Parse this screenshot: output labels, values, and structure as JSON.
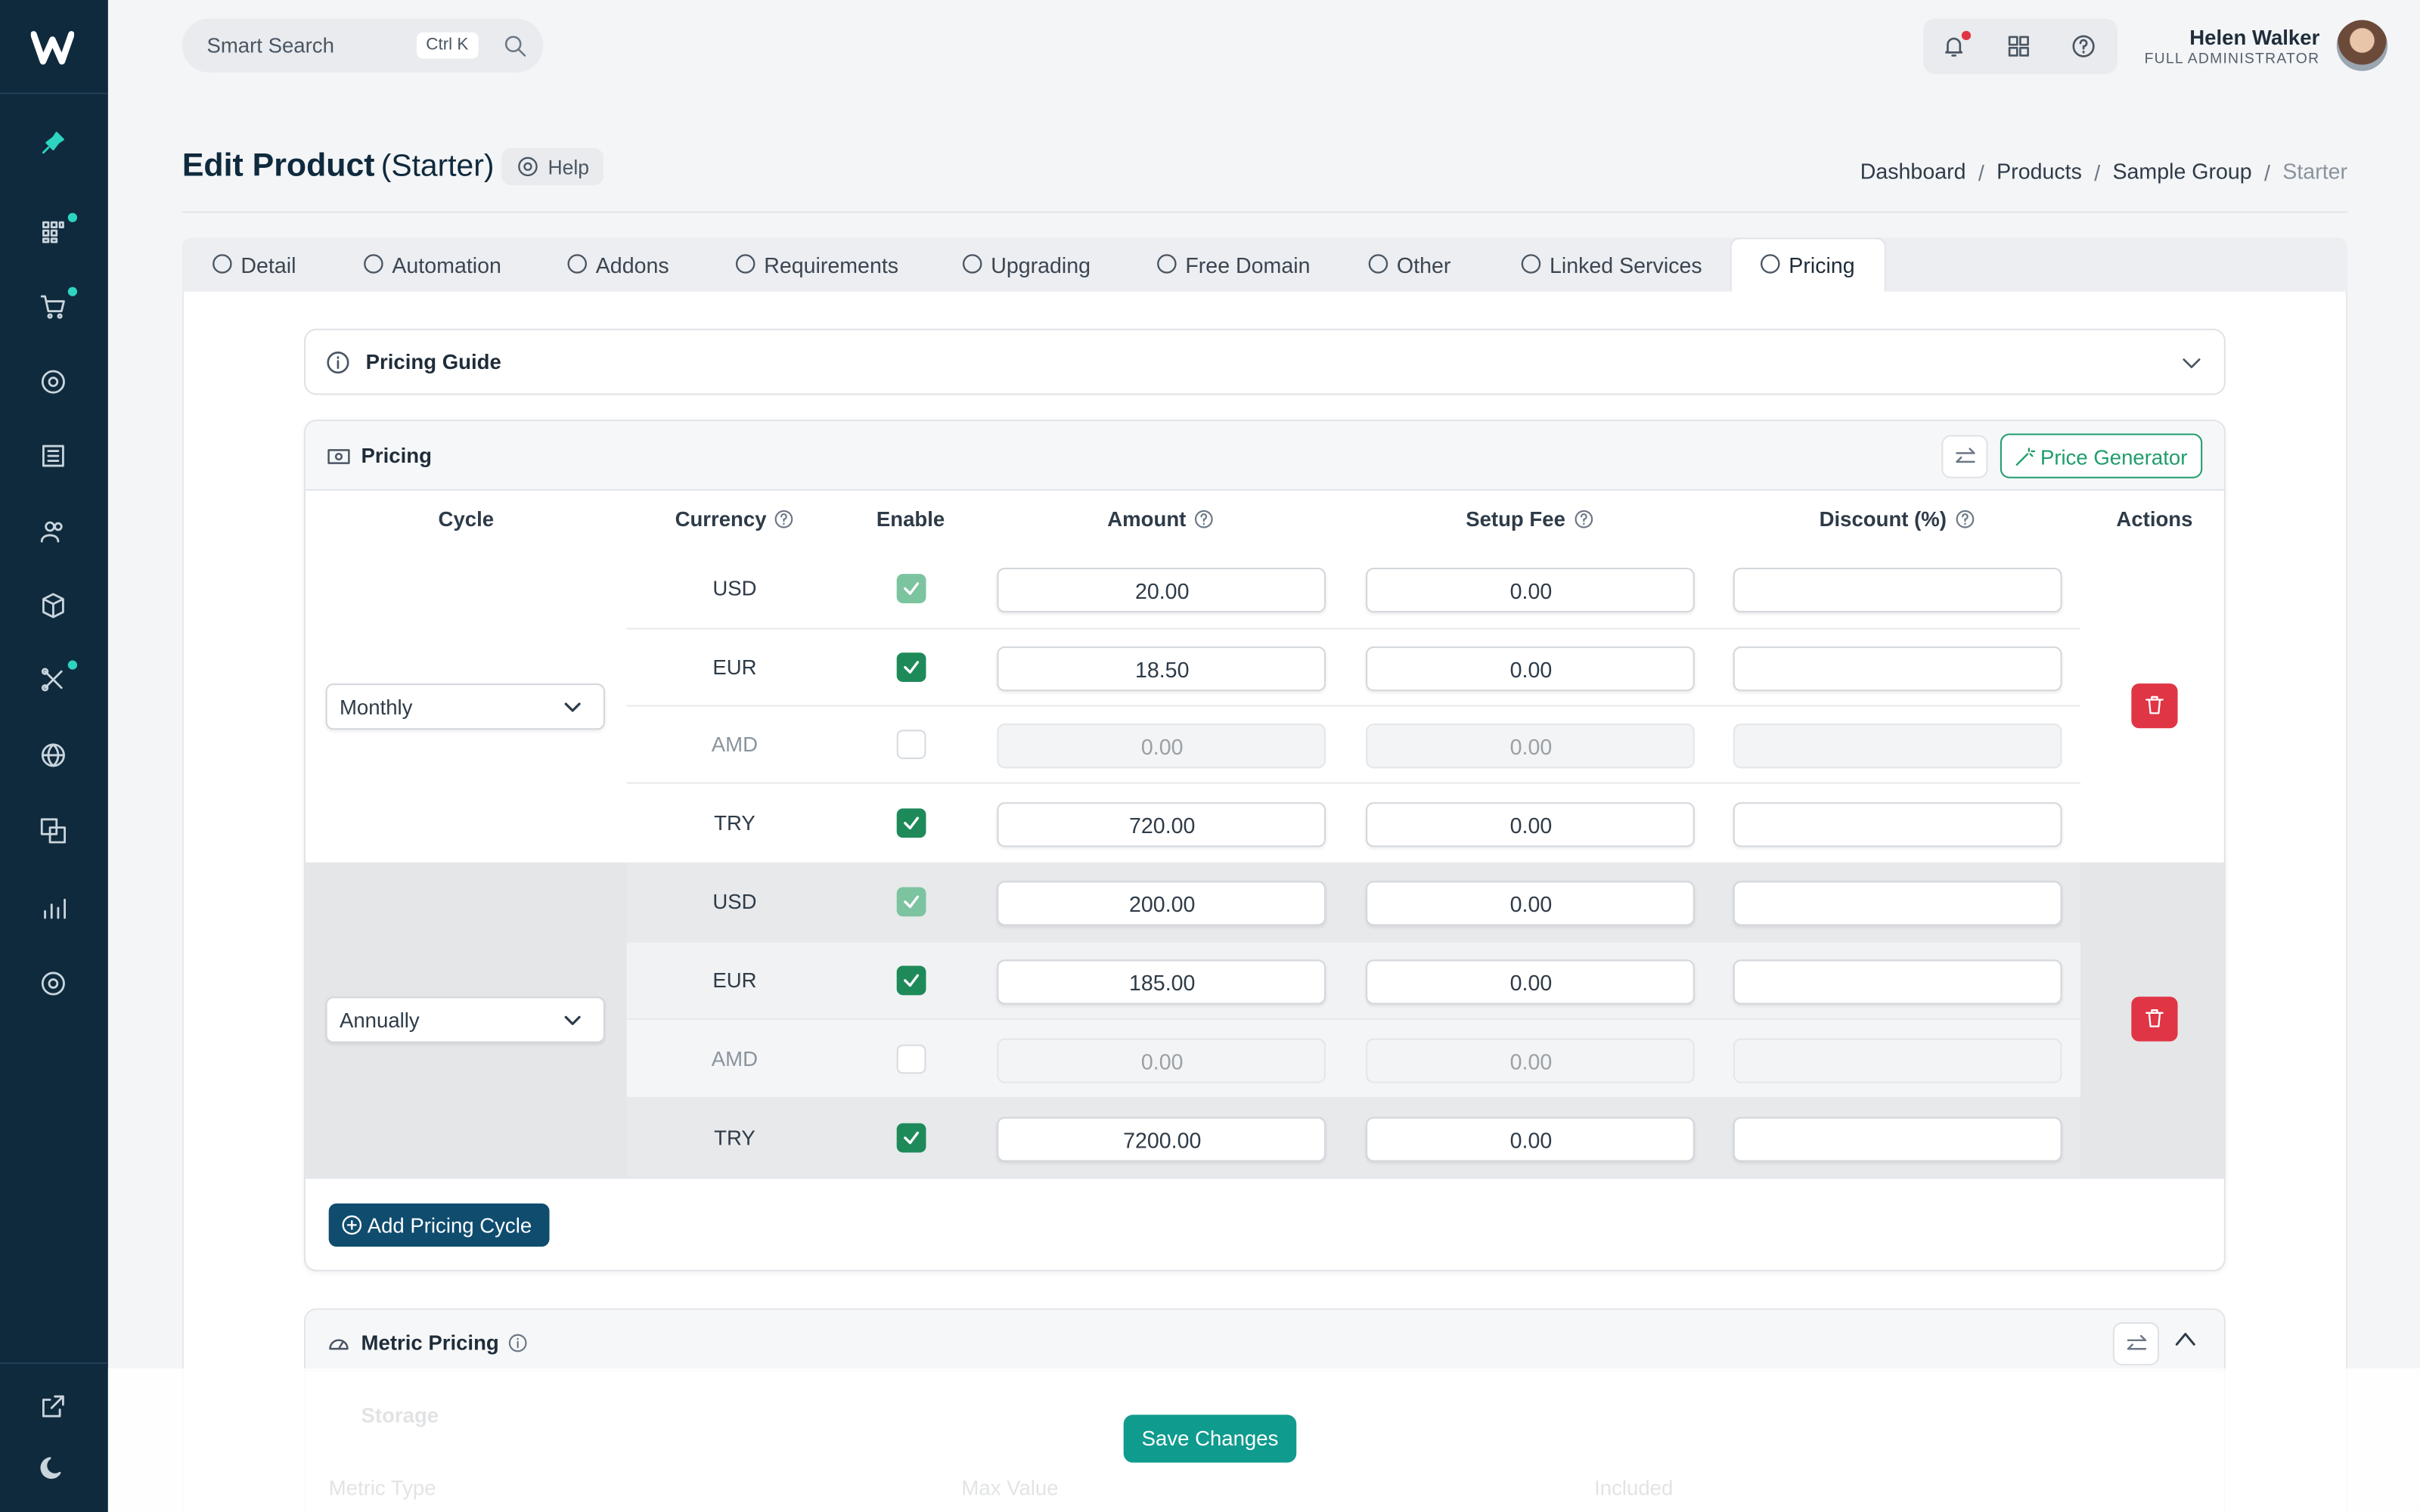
{
  "header": {
    "search_placeholder": "Smart Search",
    "search_shortcut": "Ctrl K",
    "user_name": "Helen Walker",
    "user_role": "FULL ADMINISTRATOR"
  },
  "page": {
    "title": "Edit Product",
    "subtitle": "(Starter)",
    "help": "Help",
    "breadcrumbs": [
      "Dashboard",
      "Products",
      "Sample Group",
      "Starter"
    ]
  },
  "tabs": [
    "Detail",
    "Automation",
    "Addons",
    "Requirements",
    "Upgrading",
    "Free Domain",
    "Other",
    "Linked Services",
    "Pricing"
  ],
  "active_tab": 8,
  "pricing_guide": {
    "title": "Pricing Guide"
  },
  "pricing": {
    "title": "Pricing",
    "generator": "Price Generator",
    "columns": [
      "Cycle",
      "Currency",
      "Enable",
      "Amount",
      "Setup Fee",
      "Discount (%)",
      "Actions"
    ],
    "cycles": [
      {
        "cycle": "Monthly",
        "rows": [
          {
            "currency": "USD",
            "enabled": true,
            "locked": true,
            "amount": "20.00",
            "setup_fee": "0.00"
          },
          {
            "currency": "EUR",
            "enabled": true,
            "amount": "18.50",
            "setup_fee": "0.00"
          },
          {
            "currency": "AMD",
            "enabled": false,
            "amount": "0.00",
            "setup_fee": "0.00"
          },
          {
            "currency": "TRY",
            "enabled": true,
            "amount": "720.00",
            "setup_fee": "0.00"
          }
        ]
      },
      {
        "cycle": "Annually",
        "rows": [
          {
            "currency": "USD",
            "enabled": true,
            "locked": true,
            "amount": "200.00",
            "setup_fee": "0.00"
          },
          {
            "currency": "EUR",
            "enabled": true,
            "amount": "185.00",
            "setup_fee": "0.00"
          },
          {
            "currency": "AMD",
            "enabled": false,
            "amount": "0.00",
            "setup_fee": "0.00"
          },
          {
            "currency": "TRY",
            "enabled": true,
            "amount": "7200.00",
            "setup_fee": "0.00"
          }
        ]
      }
    ],
    "add_button": "Add Pricing Cycle"
  },
  "metric_pricing": {
    "title": "Metric Pricing",
    "item": "Storage",
    "columns": [
      "Metric Type",
      "Max Value",
      "Included"
    ]
  },
  "save": "Save Changes"
}
